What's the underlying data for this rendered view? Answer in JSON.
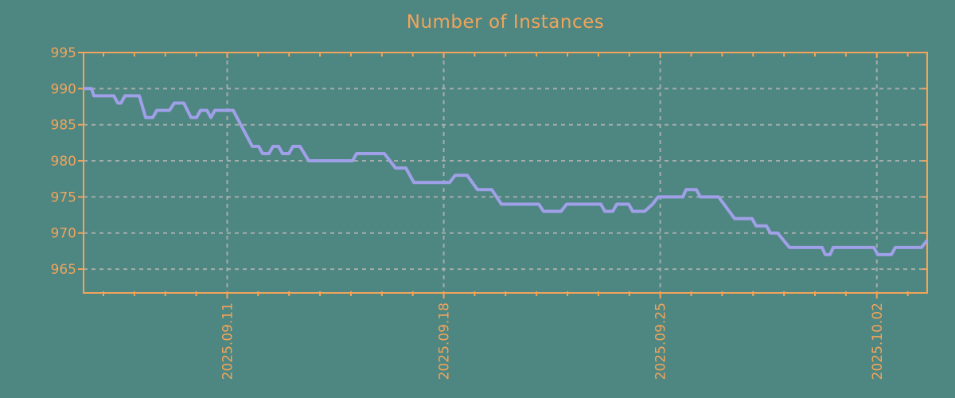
{
  "title": "Number of Instances",
  "colors": {
    "background": "#4e8682",
    "axis": "#f2a45a",
    "title_text": "#f2a45a",
    "tick_label_text": "#f2a45a",
    "line": "#a0a0e8",
    "grid": "#b4b4b4"
  },
  "chart_data": {
    "type": "line",
    "title": "Number of Instances",
    "xlabel": "",
    "ylabel": "",
    "legend": "none",
    "grid": "dashed",
    "x_unit": "days from left edge of plot",
    "x_range_days": [
      0,
      27.27
    ],
    "ylim": [
      961.7,
      995
    ],
    "y_ticks": [
      965,
      970,
      975,
      980,
      985,
      990,
      995
    ],
    "x_labeled_ticks": [
      {
        "t": 4.643,
        "label": "2025.09.11"
      },
      {
        "t": 11.643,
        "label": "2025.09.18"
      },
      {
        "t": 18.643,
        "label": "2025.09.25"
      },
      {
        "t": 25.643,
        "label": "2025.10.02"
      }
    ],
    "x_minor_ticks": {
      "start_t": 0.643,
      "interval": 1,
      "count": 27
    },
    "series": [
      {
        "name": "instances",
        "points": [
          [
            0,
            990
          ],
          [
            0.257,
            990
          ],
          [
            0.334,
            989
          ],
          [
            0.978,
            989
          ],
          [
            1.106,
            988
          ],
          [
            1.209,
            988
          ],
          [
            1.338,
            989
          ],
          [
            1.801,
            989
          ],
          [
            2.007,
            986
          ],
          [
            2.238,
            986
          ],
          [
            2.367,
            987
          ],
          [
            2.778,
            987
          ],
          [
            2.933,
            988
          ],
          [
            3.241,
            988
          ],
          [
            3.473,
            986
          ],
          [
            3.653,
            986
          ],
          [
            3.781,
            987
          ],
          [
            3.987,
            987
          ],
          [
            4.116,
            986
          ],
          [
            4.245,
            987
          ],
          [
            4.836,
            987
          ],
          [
            5.454,
            982
          ],
          [
            5.66,
            982
          ],
          [
            5.788,
            981
          ],
          [
            5.994,
            981
          ],
          [
            6.123,
            982
          ],
          [
            6.303,
            982
          ],
          [
            6.431,
            981
          ],
          [
            6.637,
            981
          ],
          [
            6.766,
            982
          ],
          [
            6.997,
            982
          ],
          [
            7.28,
            980
          ],
          [
            8.695,
            980
          ],
          [
            8.824,
            981
          ],
          [
            9.724,
            981
          ],
          [
            9.904,
            980
          ],
          [
            10.084,
            979
          ],
          [
            10.419,
            979
          ],
          [
            10.676,
            977
          ],
          [
            11.834,
            977
          ],
          [
            12.014,
            978
          ],
          [
            12.4,
            978
          ],
          [
            12.734,
            976
          ],
          [
            13.197,
            976
          ],
          [
            13.506,
            974
          ],
          [
            14.715,
            974
          ],
          [
            14.869,
            973
          ],
          [
            15.435,
            973
          ],
          [
            15.616,
            974
          ],
          [
            16.722,
            974
          ],
          [
            16.851,
            973
          ],
          [
            17.108,
            973
          ],
          [
            17.237,
            974
          ],
          [
            17.623,
            974
          ],
          [
            17.751,
            973
          ],
          [
            18.137,
            973
          ],
          [
            18.394,
            974
          ],
          [
            18.574,
            975
          ],
          [
            19.372,
            975
          ],
          [
            19.475,
            976
          ],
          [
            19.809,
            976
          ],
          [
            19.938,
            975
          ],
          [
            20.53,
            975
          ],
          [
            21.044,
            972
          ],
          [
            21.61,
            972
          ],
          [
            21.739,
            971
          ],
          [
            22.073,
            971
          ],
          [
            22.202,
            970
          ],
          [
            22.434,
            970
          ],
          [
            22.82,
            968
          ],
          [
            23.874,
            968
          ],
          [
            23.977,
            967
          ],
          [
            24.132,
            967
          ],
          [
            24.235,
            968
          ],
          [
            25.547,
            968
          ],
          [
            25.675,
            967
          ],
          [
            26.113,
            967
          ],
          [
            26.241,
            968
          ],
          [
            27.09,
            968
          ],
          [
            27.27,
            969
          ]
        ]
      }
    ]
  }
}
